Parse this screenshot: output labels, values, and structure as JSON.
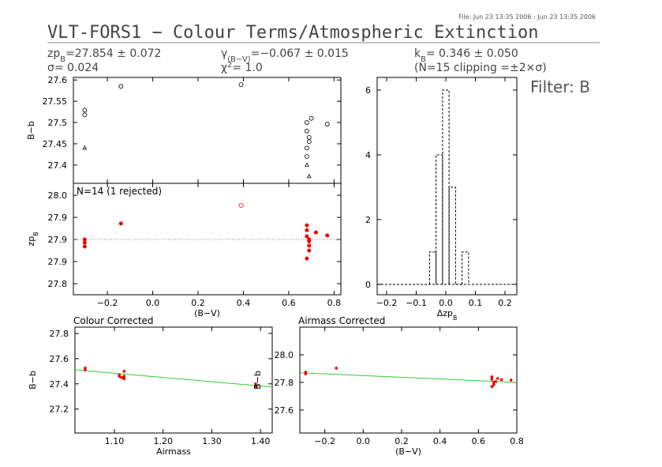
{
  "header": {
    "file": "File: Jun 23 13:35 2006 : Jun 23 13:35 2006",
    "title": "VLT-FORS1 − Colour Terms/Atmospheric Extinction",
    "filter": "Filter: B",
    "stats": [
      {
        "text": "zp",
        "sub": "B",
        "rest": "=27.854 ± 0.072"
      },
      {
        "text": "γ",
        "sub": "(B−V)",
        "rest": "=−0.067 ± 0.015"
      },
      {
        "text": "k",
        "sub": "B",
        "rest": "= 0.346 ± 0.050"
      },
      {
        "text": "σ= 0.024"
      },
      {
        "text": "χ",
        "sup": "2",
        "rest": "=  1.0"
      },
      {
        "text": "(N=15 clipping =±2×σ)"
      }
    ]
  },
  "chart_data": [
    {
      "type": "scatter",
      "ylabel": {
        "text": "B−b"
      },
      "show_xtick_labels": false,
      "xlim": [
        -0.35,
        0.83
      ],
      "ylim": [
        27.357,
        27.606
      ],
      "xticks": [
        {
          "value": -0.2,
          "label": "−0.2"
        },
        {
          "value": 0,
          "label": "0.0"
        },
        0.2,
        0.4,
        0.6,
        0.8
      ],
      "yticks": [
        27.4,
        27.45,
        27.5,
        27.55,
        27.6
      ],
      "series": [
        {
          "marker": "circle-open",
          "color": "#000000",
          "x": [
            -0.3,
            -0.3,
            -0.14,
            0.39,
            0.68,
            0.68,
            0.69,
            0.69,
            0.68,
            0.68,
            0.7,
            0.77
          ],
          "y": [
            27.529,
            27.518,
            27.585,
            27.589,
            27.5,
            27.48,
            27.465,
            27.455,
            27.44,
            27.42,
            27.51,
            27.496
          ]
        },
        {
          "marker": "triangle-open",
          "color": "#000000",
          "x": [
            -0.3,
            0.68,
            0.69
          ],
          "y": [
            27.44,
            27.4,
            27.373
          ]
        }
      ]
    },
    {
      "type": "scatter",
      "ylabel": {
        "text": "zp",
        "sub": "B"
      },
      "xlabel": "(B−V)",
      "annotation": "N=14 (1 rejected)",
      "xlim": [
        -0.35,
        0.83
      ],
      "ylim": [
        27.775,
        28.027
      ],
      "reference_line": 27.9,
      "xticks": [
        {
          "value": -0.2,
          "label": "−0.2"
        },
        {
          "value": 0,
          "label": "0.0"
        },
        0.2,
        0.4,
        0.6,
        0.8
      ],
      "yticks": [
        {
          "value": 28,
          "label": "28.0"
        },
        {
          "value": 27.95,
          "label": "27.9"
        },
        27.9,
        {
          "value": 27.85,
          "label": "27.9"
        },
        27.8
      ],
      "series": [
        {
          "marker": "circle-filled",
          "color": "#ee0000",
          "x": [
            -0.3,
            -0.3,
            -0.3,
            -0.14,
            0.68,
            0.68,
            0.68,
            0.69,
            0.69,
            0.69,
            0.68,
            0.69,
            0.72,
            0.77
          ],
          "y": [
            27.9,
            27.893,
            27.884,
            27.936,
            27.932,
            27.921,
            27.907,
            27.896,
            27.886,
            27.875,
            27.857,
            27.9,
            27.916,
            27.909
          ]
        },
        {
          "marker": "circle-open",
          "color": "#ee0000",
          "x": [
            0.39
          ],
          "y": [
            27.977
          ]
        }
      ]
    },
    {
      "type": "histogram",
      "xlabel": {
        "text": "Δzp",
        "sub": "B"
      },
      "xlim": [
        -0.232,
        0.24
      ],
      "ylim": [
        -0.32,
        6.39
      ],
      "xticks": [
        {
          "value": -0.2,
          "label": "−0.2"
        },
        {
          "value": -0.1,
          "label": "−0.1"
        },
        {
          "value": 0,
          "label": "0.0"
        },
        0.1,
        0.2
      ],
      "yticks": [
        0,
        2,
        4,
        6
      ],
      "bins": [
        -0.055,
        -0.033,
        -0.011,
        0.011,
        0.033,
        0.055,
        0.077
      ],
      "values": [
        1,
        4,
        6,
        3,
        0,
        1
      ]
    },
    {
      "type": "scatter",
      "title": "Colour Corrected",
      "ylabel": {
        "text": "B−b"
      },
      "xlabel": "Airmass",
      "xlim": [
        1.019,
        1.424
      ],
      "ylim": [
        27.01,
        27.85
      ],
      "xticks": [
        {
          "value": 1.1,
          "label": "1.10"
        },
        {
          "value": 1.2,
          "label": "1.20"
        },
        {
          "value": 1.3,
          "label": "1.30"
        },
        {
          "value": 1.4,
          "label": "1.40"
        }
      ],
      "yticks": [
        27.2,
        27.4,
        27.6,
        27.8
      ],
      "fit": {
        "color": "#33cc33",
        "x": [
          1.019,
          1.424
        ],
        "y": [
          27.512,
          27.375
        ]
      },
      "series": [
        {
          "marker": "dot",
          "color": "#ee0000",
          "x": [
            1.04,
            1.04,
            1.11,
            1.11,
            1.12,
            1.12,
            1.12,
            1.115,
            1.39,
            1.39
          ],
          "y": [
            27.525,
            27.51,
            27.47,
            27.46,
            27.5,
            27.46,
            27.44,
            27.45,
            27.4,
            27.38
          ]
        }
      ]
    },
    {
      "type": "scatter",
      "title": "Airmass Corrected",
      "ylabel": {
        "text": "B−b"
      },
      "xlabel": "(B−V)",
      "xlim": [
        -0.33,
        0.8
      ],
      "ylim": [
        27.434,
        28.2
      ],
      "xticks": [
        {
          "value": -0.2,
          "label": "−0.2"
        },
        {
          "value": 0,
          "label": "0.0"
        },
        0.2,
        0.4,
        0.6,
        0.8
      ],
      "yticks": [
        {
          "value": 28,
          "label": "28.0"
        },
        27.8,
        27.6
      ],
      "fit": {
        "color": "#33cc33",
        "x": [
          -0.33,
          0.8
        ],
        "y": [
          27.87,
          27.8
        ]
      },
      "series": [
        {
          "marker": "dot",
          "color": "#ee0000",
          "x": [
            -0.3,
            -0.3,
            -0.14,
            0.67,
            0.67,
            0.68,
            0.68,
            0.69,
            0.67,
            0.7,
            0.72,
            0.77
          ],
          "y": [
            27.874,
            27.863,
            27.903,
            27.84,
            27.823,
            27.8,
            27.783,
            27.806,
            27.77,
            27.829,
            27.82,
            27.817
          ]
        }
      ]
    }
  ]
}
